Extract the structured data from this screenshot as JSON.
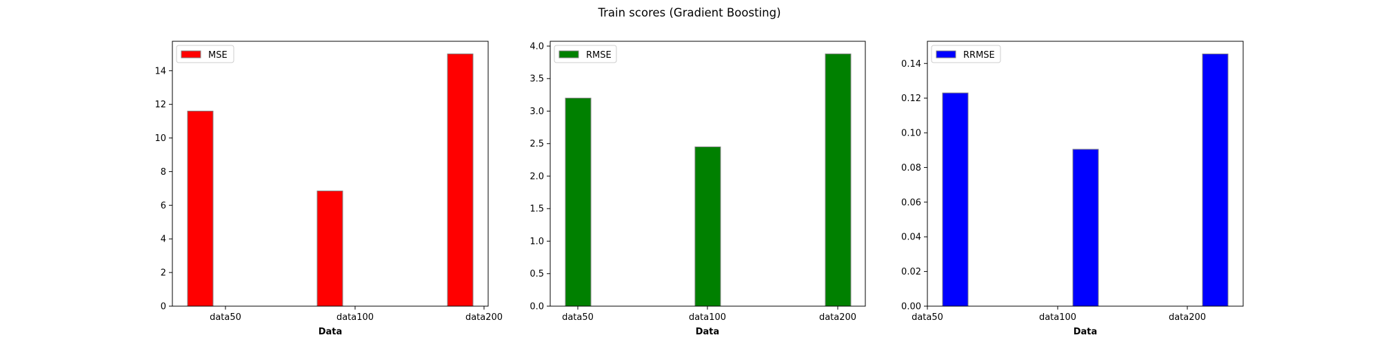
{
  "figure": {
    "suptitle": "Train scores (Gradient Boosting)"
  },
  "chart_data": [
    {
      "type": "bar",
      "title": "",
      "xlabel": "Data",
      "ylabel": "",
      "categories": [
        "data50",
        "data100",
        "data200"
      ],
      "series": [
        {
          "name": "MSE",
          "values": [
            11.6,
            6.85,
            15.0
          ]
        }
      ],
      "color": "#ff0000",
      "edge_color": "#808080",
      "ylim": [
        0,
        15.75
      ],
      "yticks": [
        0,
        2,
        4,
        6,
        8,
        10,
        12,
        14
      ],
      "ytick_labels": [
        "0",
        "2",
        "4",
        "6",
        "8",
        "10",
        "12",
        "14"
      ],
      "legend_position": "upper-left",
      "grid": false
    },
    {
      "type": "bar",
      "title": "",
      "xlabel": "Data",
      "ylabel": "",
      "categories": [
        "data50",
        "data100",
        "data200"
      ],
      "series": [
        {
          "name": "RMSE",
          "values": [
            3.2,
            2.45,
            3.88
          ]
        }
      ],
      "color": "#008000",
      "edge_color": "#808080",
      "ylim": [
        0,
        4.074
      ],
      "yticks": [
        0,
        0.5,
        1.0,
        1.5,
        2.0,
        2.5,
        3.0,
        3.5,
        4.0
      ],
      "ytick_labels": [
        "0.0",
        "0.5",
        "1.0",
        "1.5",
        "2.0",
        "2.5",
        "3.0",
        "3.5",
        "4.0"
      ],
      "legend_position": "upper-left",
      "grid": false
    },
    {
      "type": "bar",
      "title": "",
      "xlabel": "Data",
      "ylabel": "",
      "categories": [
        "data50",
        "data100",
        "data200"
      ],
      "series": [
        {
          "name": "RRMSE",
          "values": [
            0.123,
            0.0905,
            0.1455
          ]
        }
      ],
      "color": "#0000ff",
      "edge_color": "#808080",
      "ylim": [
        0,
        0.1528
      ],
      "yticks": [
        0,
        0.02,
        0.04,
        0.06,
        0.08,
        0.1,
        0.12,
        0.14
      ],
      "ytick_labels": [
        "0.00",
        "0.02",
        "0.04",
        "0.06",
        "0.08",
        "0.10",
        "0.12",
        "0.14"
      ],
      "legend_position": "upper-left",
      "grid": false
    }
  ]
}
